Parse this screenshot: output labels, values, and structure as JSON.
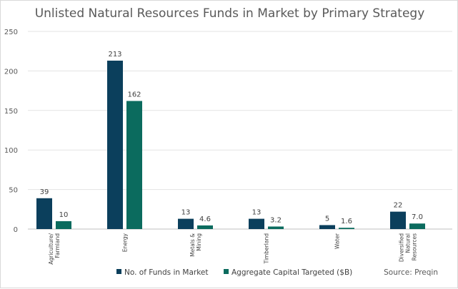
{
  "chart_data": {
    "type": "bar",
    "title": "Unlisted Natural Resources Funds in Market by Primary Strategy",
    "categories": [
      [
        "Agriculture/",
        "Farmland"
      ],
      [
        "Energy"
      ],
      [
        "Metals &",
        "Mining"
      ],
      [
        "Timberland"
      ],
      [
        "Water"
      ],
      [
        "Diversified",
        "Natural",
        "Resources"
      ]
    ],
    "series": [
      {
        "name": "No. of Funds in Market",
        "color": "#0b3f5c",
        "values": [
          39,
          213,
          13,
          13,
          5,
          22
        ],
        "labels": [
          "39",
          "213",
          "13",
          "13",
          "5",
          "22"
        ]
      },
      {
        "name": "Aggregate Capital Targeted ($B)",
        "color": "#0b6b5e",
        "values": [
          10,
          162,
          4.6,
          3.2,
          1.6,
          7.0
        ],
        "labels": [
          "10",
          "162",
          "4.6",
          "3.2",
          "1.6",
          "7.0"
        ]
      }
    ],
    "ylim": [
      0,
      250
    ],
    "yticks": [
      0,
      50,
      100,
      150,
      200,
      250
    ],
    "grid": true,
    "legend": "bottom",
    "source": "Source: Preqin"
  }
}
